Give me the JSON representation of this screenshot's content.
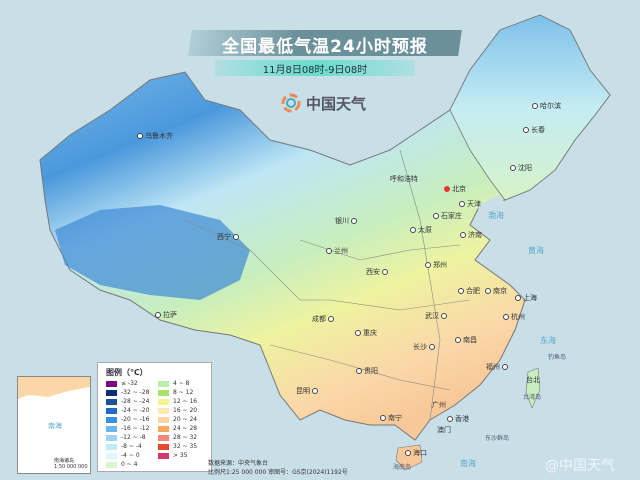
{
  "header": {
    "title": "全国最低气温24小时预报",
    "subtitle": "11月8日08时-9日08时",
    "logo_text": "中国天气"
  },
  "cities": [
    {
      "name": "乌鲁木齐"
    },
    {
      "name": "拉萨"
    },
    {
      "name": "西宁"
    },
    {
      "name": "兰州"
    },
    {
      "name": "银川"
    },
    {
      "name": "呼和浩特"
    },
    {
      "name": "北京"
    },
    {
      "name": "天津"
    },
    {
      "name": "石家庄"
    },
    {
      "name": "太原"
    },
    {
      "name": "济南"
    },
    {
      "name": "郑州"
    },
    {
      "name": "西安"
    },
    {
      "name": "合肥"
    },
    {
      "name": "南京"
    },
    {
      "name": "上海"
    },
    {
      "name": "杭州"
    },
    {
      "name": "武汉"
    },
    {
      "name": "成都"
    },
    {
      "name": "重庆"
    },
    {
      "name": "长沙"
    },
    {
      "name": "南昌"
    },
    {
      "name": "贵阳"
    },
    {
      "name": "福州"
    },
    {
      "name": "台北"
    },
    {
      "name": "昆明"
    },
    {
      "name": "南宁"
    },
    {
      "name": "广州"
    },
    {
      "name": "香港"
    },
    {
      "name": "澳门"
    },
    {
      "name": "海口"
    },
    {
      "name": "沈阳"
    },
    {
      "name": "长春"
    },
    {
      "name": "哈尔滨"
    }
  ],
  "seas": {
    "bohai": "渤海",
    "huanghai": "黄海",
    "donghai": "东海",
    "nanhai": "南海"
  },
  "islands": {
    "taiwan": "台湾岛",
    "hainan": "海南岛",
    "dongsha": "东沙群岛",
    "diaoyu": "钓鱼岛"
  },
  "legend": {
    "title": "图例（℃）",
    "items": [
      {
        "label": "≤ -32",
        "color": "#7b0a7b"
      },
      {
        "label": "-32 ~ -28",
        "color": "#0b2e7a"
      },
      {
        "label": "-28 ~ -24",
        "color": "#1e4f9a"
      },
      {
        "label": "-24 ~ -20",
        "color": "#1f6cc4"
      },
      {
        "label": "-20 ~ -16",
        "color": "#3a8fe0"
      },
      {
        "label": "-16 ~ -12",
        "color": "#6bb6ee"
      },
      {
        "label": "-12 ~ -8",
        "color": "#9ed3f2"
      },
      {
        "label": "-8 ~ -4",
        "color": "#bfeaf7"
      },
      {
        "label": "-4 ~ 0",
        "color": "#e2f6fb"
      },
      {
        "label": "0 ~ 4",
        "color": "#d8f7d0"
      },
      {
        "label": "4 ~ 8",
        "color": "#b8f0a8"
      },
      {
        "label": "8 ~ 12",
        "color": "#a7e36a"
      },
      {
        "label": "12 ~ 16",
        "color": "#f3f58e"
      },
      {
        "label": "16 ~ 20",
        "color": "#fbe9b2"
      },
      {
        "label": "20 ~ 24",
        "color": "#fbd6a4"
      },
      {
        "label": "24 ~ 28",
        "color": "#f6a760"
      },
      {
        "label": "28 ~ 32",
        "color": "#ee8a76"
      },
      {
        "label": "32 ~ 35",
        "color": "#e8482c"
      },
      {
        "label": "> 35",
        "color": "#d33a6a"
      }
    ]
  },
  "inset": {
    "title": "南海诸岛",
    "scale": "1:50 000 000",
    "nanhai": "南海"
  },
  "footer": {
    "source": "数据来源：中央气象台",
    "scale": "比例尺1:25 000 000  审图号：GS京(2024)1192号"
  },
  "watermark": "@中国天气"
}
